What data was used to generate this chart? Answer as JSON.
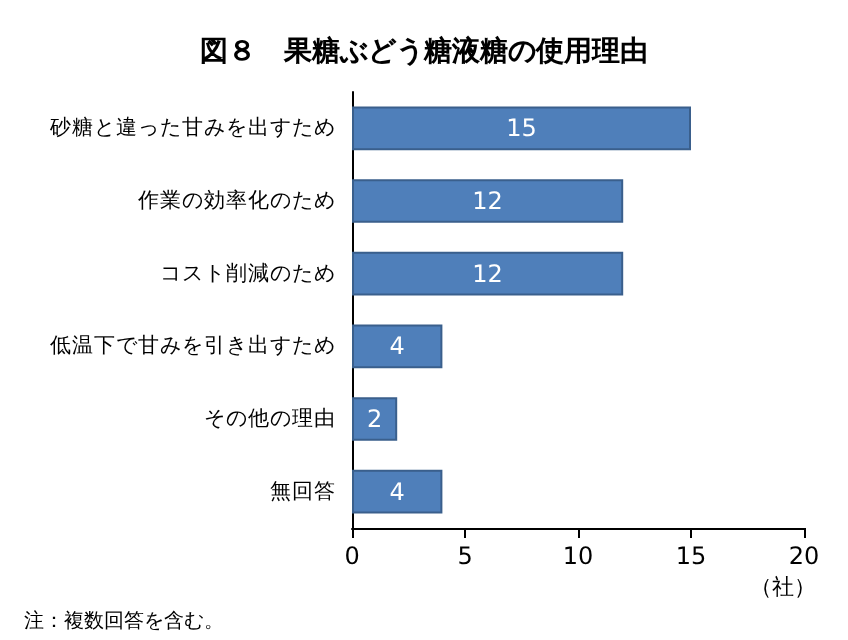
{
  "chart_data": {
    "type": "bar",
    "orientation": "horizontal",
    "title": "図８　果糖ぶどう糖液糖の使用理由",
    "categories": [
      "砂糖と違った甘みを出すため",
      "作業の効率化のため",
      "コスト削減のため",
      "低温下で甘みを引き出すため",
      "その他の理由",
      "無回答"
    ],
    "values": [
      15,
      12,
      12,
      4,
      2,
      4
    ],
    "color": "#4f7fba",
    "xlim": [
      0,
      20
    ],
    "xticks": [
      0,
      5,
      10,
      15,
      20
    ],
    "xlabel": "（社）",
    "data_labels": true,
    "grid": false,
    "annotations": [
      "注：複数回答を含む。"
    ]
  }
}
